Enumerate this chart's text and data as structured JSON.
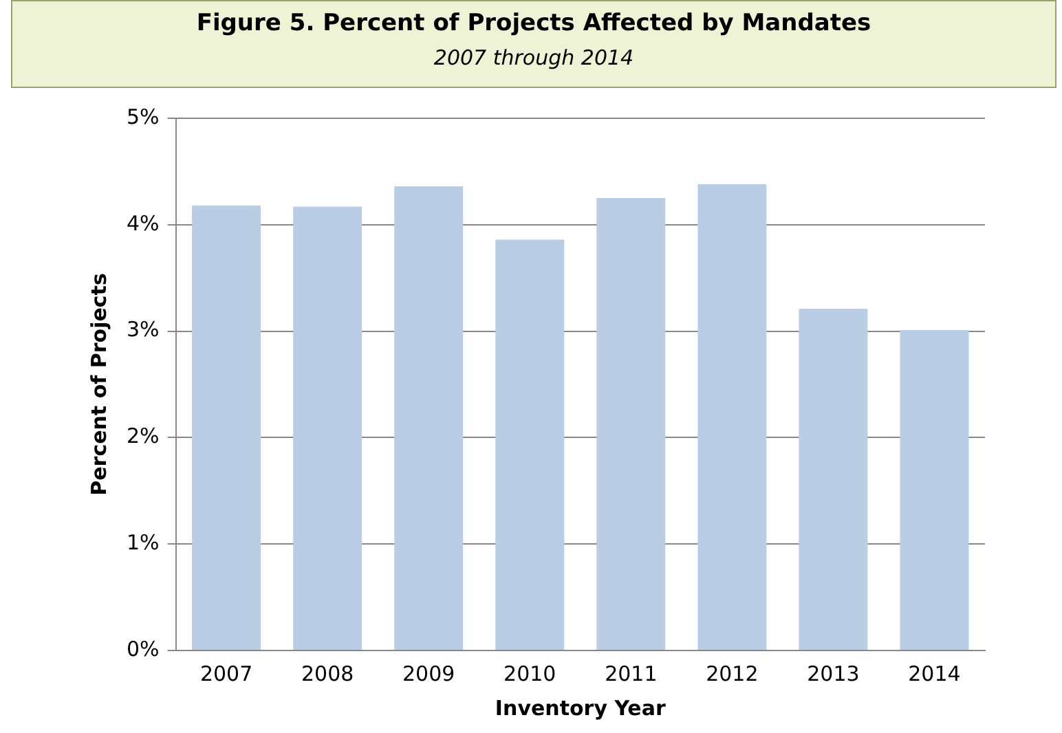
{
  "chart_data": {
    "type": "bar",
    "title": "Figure 5.  Percent of Projects Affected by Mandates",
    "subtitle": "2007 through 2014",
    "xlabel": "Inventory Year",
    "ylabel": "Percent of Projects",
    "categories": [
      "2007",
      "2008",
      "2009",
      "2010",
      "2011",
      "2012",
      "2013",
      "2014"
    ],
    "values": [
      4.18,
      4.17,
      4.36,
      3.86,
      4.25,
      4.38,
      3.21,
      3.01
    ],
    "color": "#b9cde5",
    "ylim": [
      0,
      5
    ],
    "yticks": [
      {
        "value": 0,
        "label": "0%"
      },
      {
        "value": 1,
        "label": "1%"
      },
      {
        "value": 2,
        "label": "2%"
      },
      {
        "value": 3,
        "label": "3%"
      },
      {
        "value": 4,
        "label": "4%"
      },
      {
        "value": 5,
        "label": "5%"
      }
    ],
    "grid": "y"
  }
}
